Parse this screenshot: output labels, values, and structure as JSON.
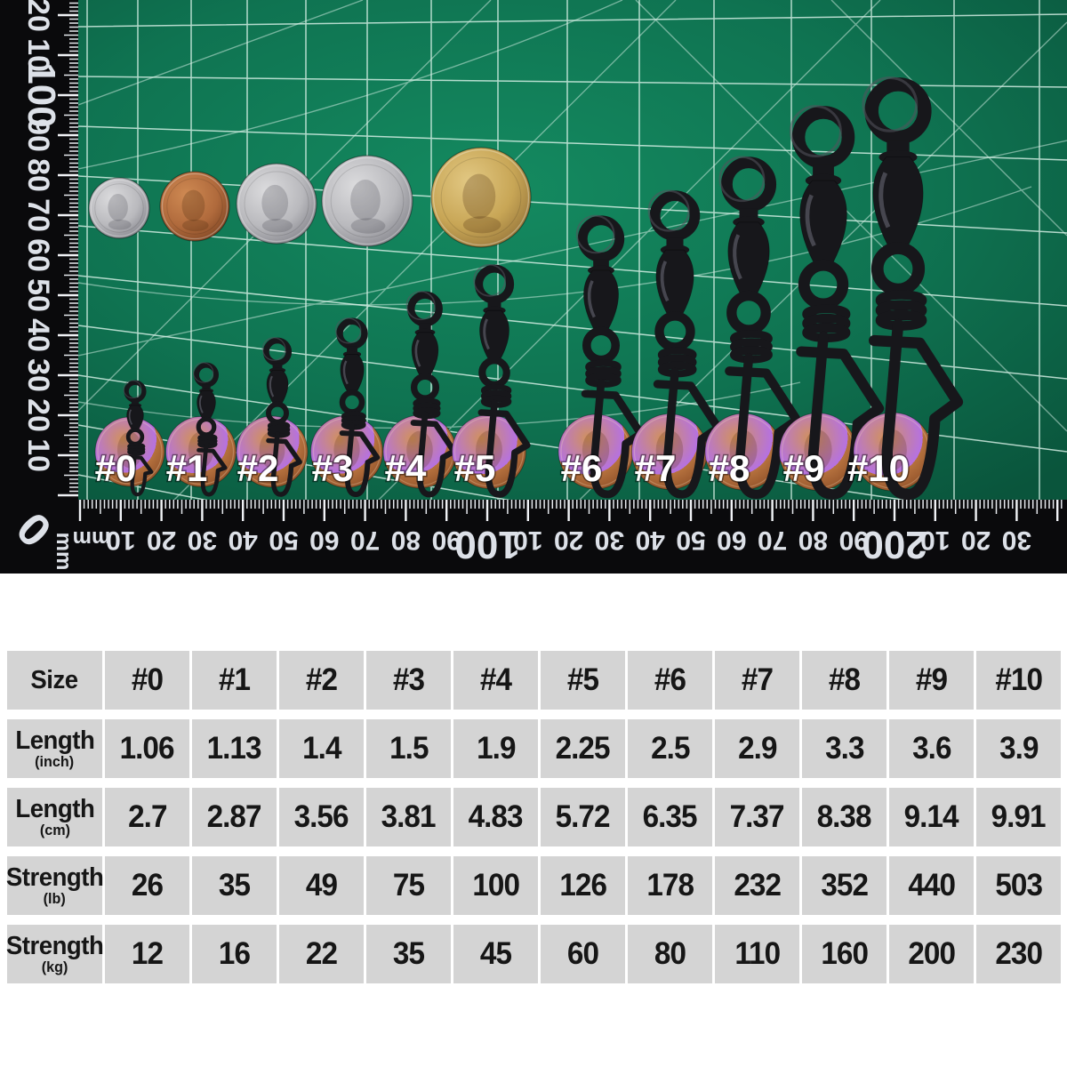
{
  "photo": {
    "alt": "Black ball-bearing fishing swivels with coastlock snaps, sizes #0 to #10, on a green cutting mat with mm rulers; US coins shown for scale",
    "size_labels": [
      "#0",
      "#1",
      "#2",
      "#3",
      "#4",
      "#5",
      "#6",
      "#7",
      "#8",
      "#9",
      "#10"
    ],
    "coins": [
      "dime",
      "penny",
      "nickel",
      "quarter",
      "dollar-coin"
    ],
    "left_ruler": {
      "unit": "mm",
      "zero": "0",
      "labels": [
        "10",
        "20",
        "30",
        "40",
        "50",
        "60",
        "70",
        "80",
        "90",
        "100",
        "10",
        "20"
      ]
    },
    "bottom_ruler": {
      "unit": "mm",
      "labels": [
        "10",
        "20",
        "30",
        "40",
        "50",
        "60",
        "70",
        "80",
        "90",
        "100",
        "10",
        "20",
        "30",
        "40",
        "50",
        "60",
        "70",
        "80",
        "90",
        "200",
        "10",
        "20",
        "30"
      ]
    },
    "colors": {
      "mat_green": "#0f7351",
      "grid_line": "#d9f2e8",
      "ruler_black": "#0a0a0c",
      "ruler_text": "#dde1e8",
      "label_white": "#ffffff",
      "swivel_metal": "#17171b",
      "penny_copper": "#b06a3c",
      "coin_silver": "#b9b9bd",
      "coin_gold": "#c8a656"
    }
  },
  "chart_data": {
    "type": "table",
    "columns": [
      "Size",
      "#0",
      "#1",
      "#2",
      "#3",
      "#4",
      "#5",
      "#6",
      "#7",
      "#8",
      "#9",
      "#10"
    ],
    "rows": [
      {
        "label": "Size",
        "unit": "",
        "values": [
          "#0",
          "#1",
          "#2",
          "#3",
          "#4",
          "#5",
          "#6",
          "#7",
          "#8",
          "#9",
          "#10"
        ]
      },
      {
        "label": "Length",
        "unit": "(inch)",
        "values": [
          1.06,
          1.13,
          1.4,
          1.5,
          1.9,
          2.25,
          2.5,
          2.9,
          3.3,
          3.6,
          3.9
        ]
      },
      {
        "label": "Length",
        "unit": "(cm)",
        "values": [
          2.7,
          2.87,
          3.56,
          3.81,
          4.83,
          5.72,
          6.35,
          7.37,
          8.38,
          9.14,
          9.91
        ]
      },
      {
        "label": "Strength",
        "unit": "(lb)",
        "values": [
          26,
          35,
          49,
          75,
          100,
          126,
          178,
          232,
          352,
          440,
          503
        ]
      },
      {
        "label": "Strength",
        "unit": "(kg)",
        "values": [
          12,
          16,
          22,
          35,
          45,
          60,
          80,
          110,
          160,
          200,
          230
        ]
      }
    ]
  }
}
